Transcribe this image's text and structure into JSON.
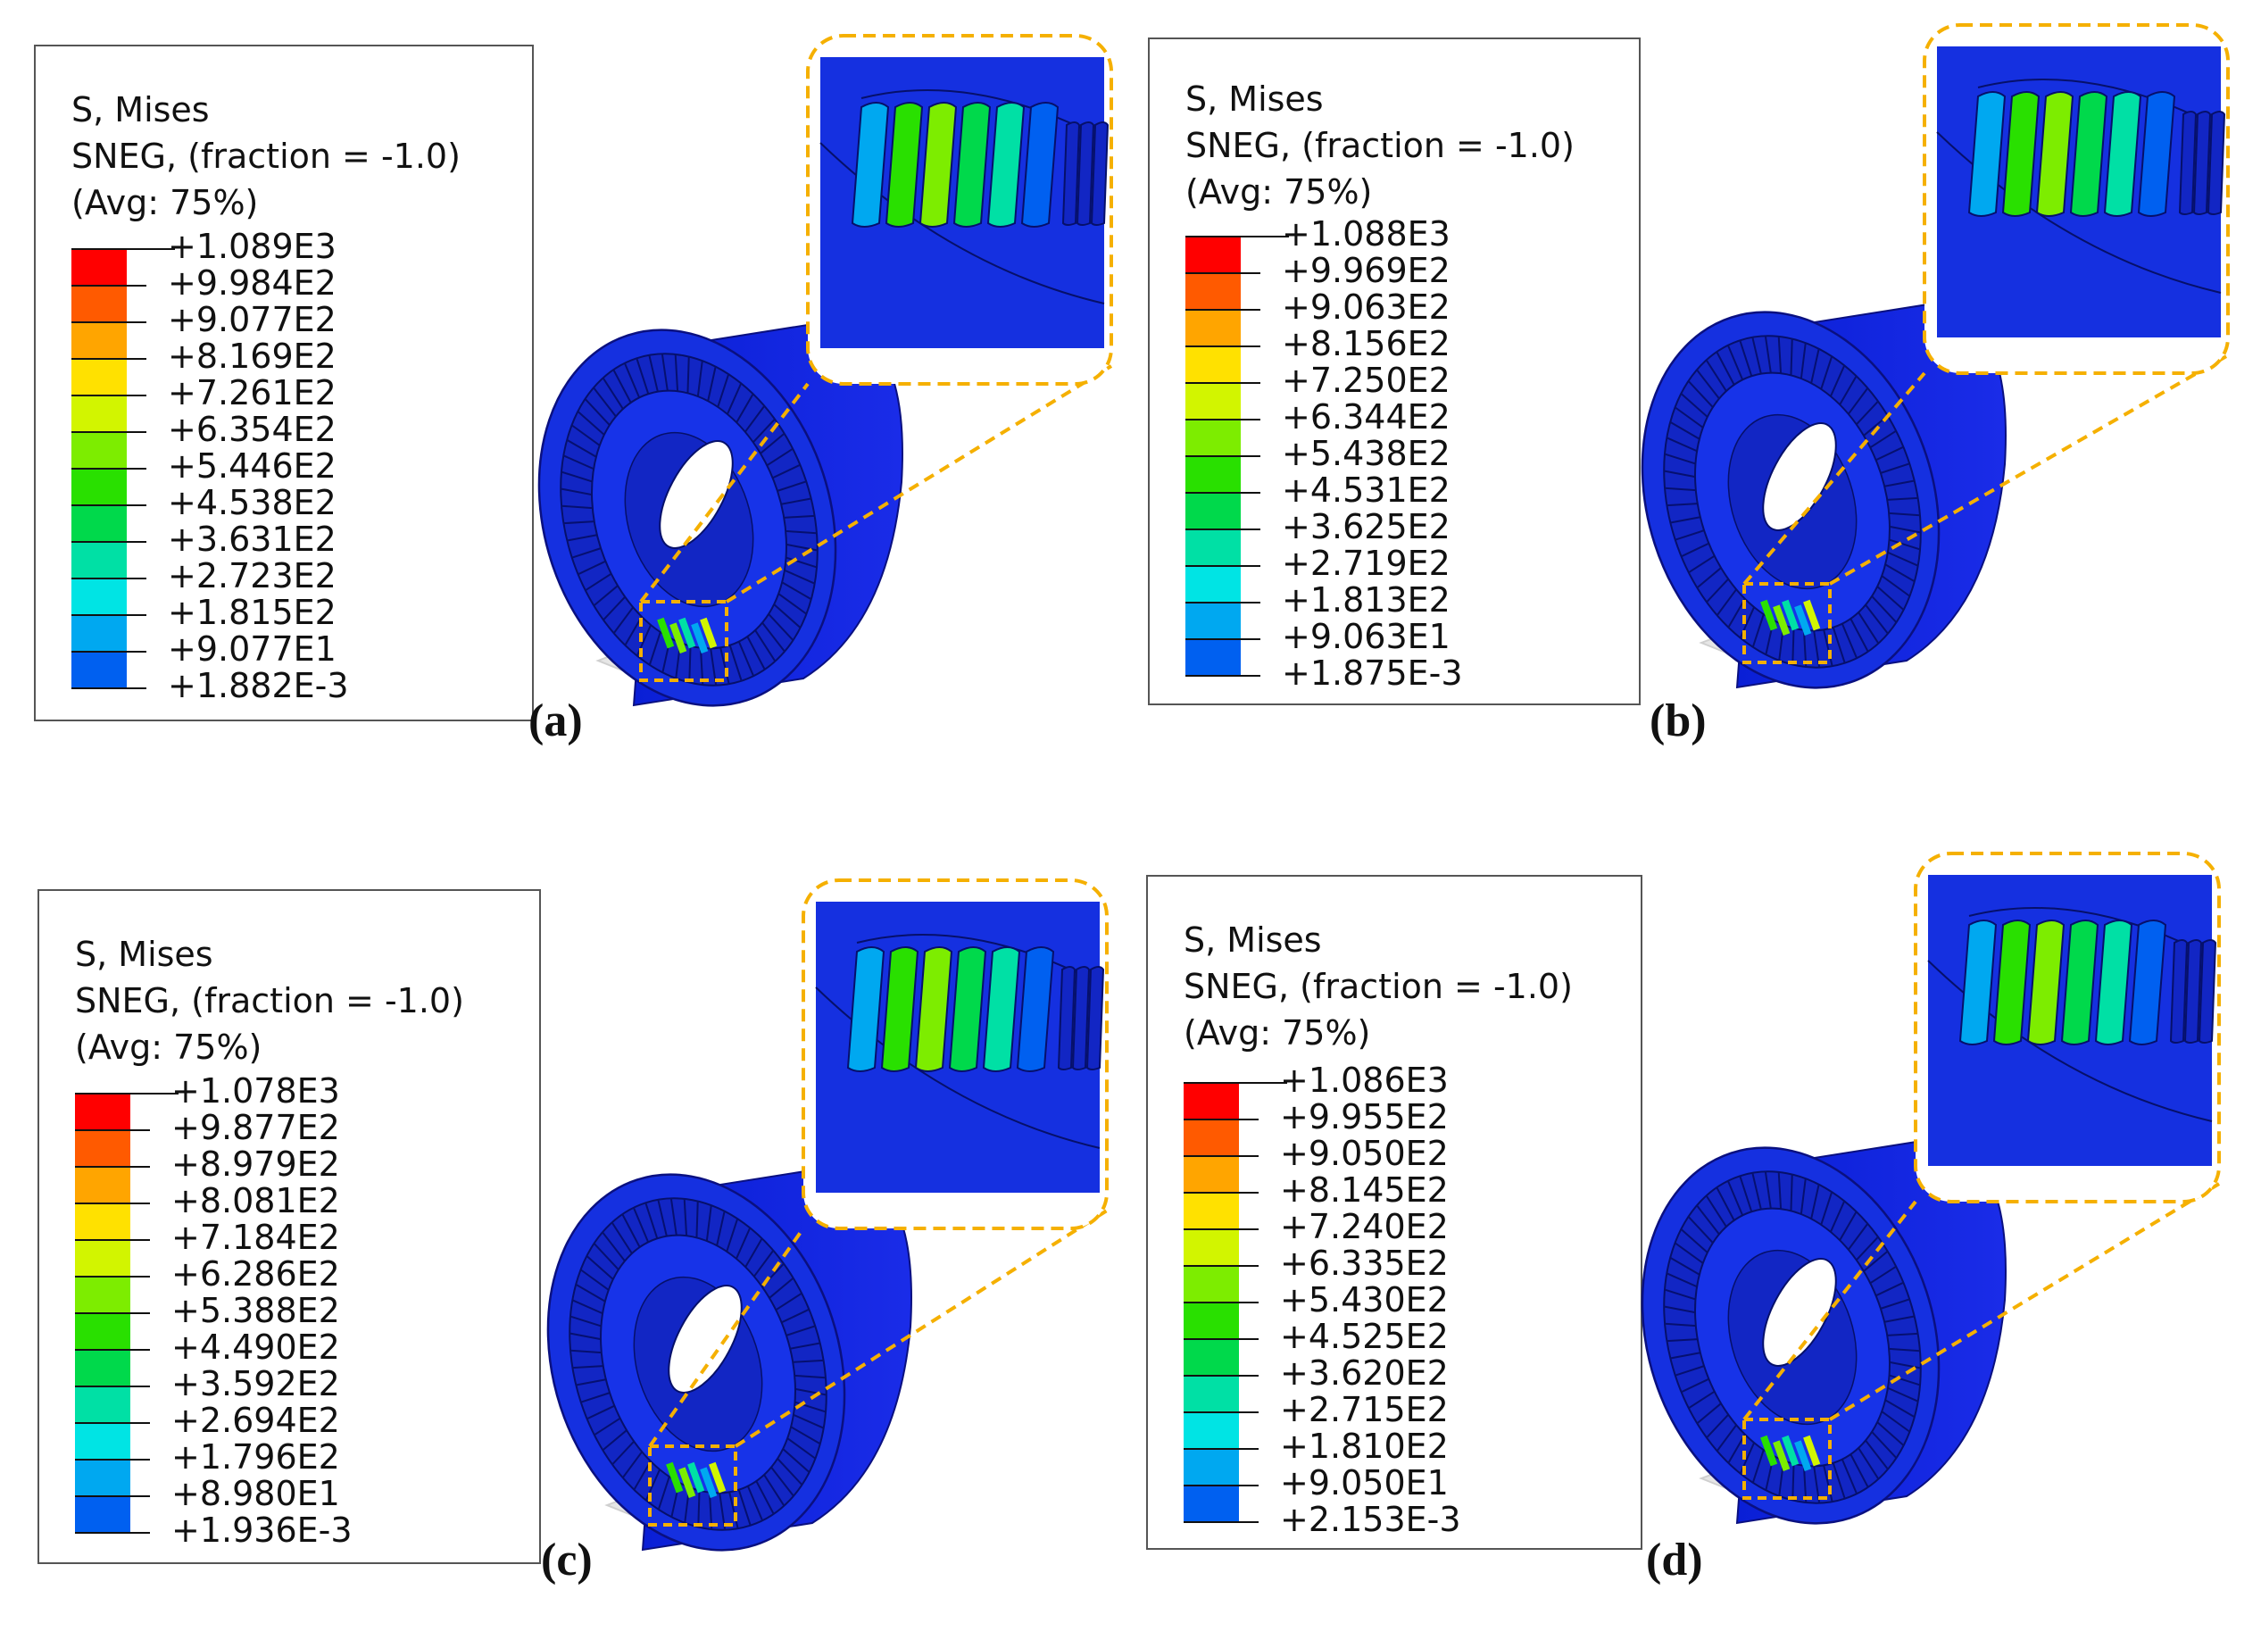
{
  "legend_title_1": "S, Mises",
  "legend_title_2": "SNEG, (fraction = -1.0)",
  "legend_title_3": "(Avg: 75%)",
  "colors": [
    "#ff0000",
    "#ff5a00",
    "#ffa500",
    "#ffe100",
    "#d2f500",
    "#7ded00",
    "#29e000",
    "#00d94b",
    "#00e0a5",
    "#00e4e4",
    "#00a8f0",
    "#0060f0",
    "#0016ff"
  ],
  "accent_dash_color": "#f5b000",
  "panels": [
    {
      "label": "(a)",
      "values": [
        "+1.089E3",
        "+9.984E2",
        "+9.077E2",
        "+8.169E2",
        "+7.261E2",
        "+6.354E2",
        "+5.446E2",
        "+4.538E2",
        "+3.631E2",
        "+2.723E2",
        "+1.815E2",
        "+9.077E1",
        "+1.882E-3"
      ]
    },
    {
      "label": "(b)",
      "values": [
        "+1.088E3",
        "+9.969E2",
        "+9.063E2",
        "+8.156E2",
        "+7.250E2",
        "+6.344E2",
        "+5.438E2",
        "+4.531E2",
        "+3.625E2",
        "+2.719E2",
        "+1.813E2",
        "+9.063E1",
        "+1.875E-3"
      ]
    },
    {
      "label": "(c)",
      "values": [
        "+1.078E3",
        "+9.877E2",
        "+8.979E2",
        "+8.081E2",
        "+7.184E2",
        "+6.286E2",
        "+5.388E2",
        "+4.490E2",
        "+3.592E2",
        "+2.694E2",
        "+1.796E2",
        "+8.980E1",
        "+1.936E-3"
      ]
    },
    {
      "label": "(d)",
      "values": [
        "+1.086E3",
        "+9.955E2",
        "+9.050E2",
        "+8.145E2",
        "+7.240E2",
        "+6.335E2",
        "+5.430E2",
        "+4.525E2",
        "+3.620E2",
        "+2.715E2",
        "+1.810E2",
        "+9.050E1",
        "+2.153E-3"
      ]
    }
  ]
}
